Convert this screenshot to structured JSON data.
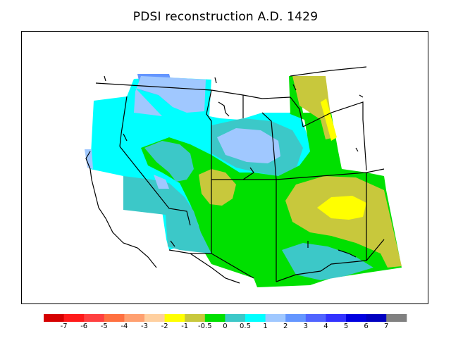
{
  "title": "PDSI reconstruction A.D. 1429",
  "colorbar": {
    "colors": [
      "#d50000",
      "#ff1a1a",
      "#ff4040",
      "#ff7040",
      "#ffa070",
      "#ffd0a0",
      "#ffff00",
      "#c8c83c",
      "#00e000",
      "#3cc8c8",
      "#00ffff",
      "#a0c8ff",
      "#6496ff",
      "#5064ff",
      "#3232ff",
      "#0000e0",
      "#0000c0",
      "#808080"
    ],
    "labels": [
      "-7",
      "-6",
      "-5",
      "-4",
      "-3",
      "-2",
      "-1",
      "-0.5",
      "0",
      "0.5",
      "1",
      "2",
      "3",
      "4",
      "5",
      "6",
      "7"
    ]
  }
}
